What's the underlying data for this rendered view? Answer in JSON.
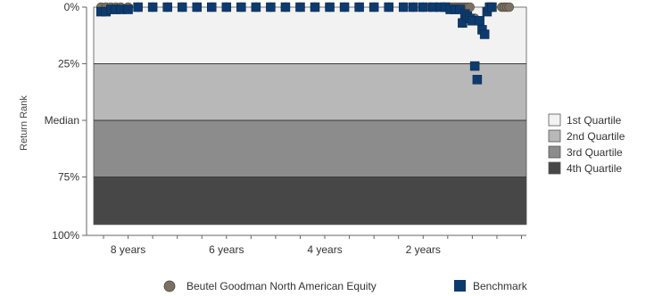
{
  "chart_data": {
    "type": "scatter",
    "title": "",
    "xlabel": "",
    "ylabel": "Return Rank",
    "x_unit": "years",
    "xlim": [
      8.7,
      -0.1
    ],
    "ylim": [
      0,
      100
    ],
    "y_ticks": [
      {
        "value": 0,
        "label": "0%"
      },
      {
        "value": 25,
        "label": "25%"
      },
      {
        "value": 50,
        "label": "Median"
      },
      {
        "value": 75,
        "label": "75%"
      },
      {
        "value": 100,
        "label": "100%"
      }
    ],
    "x_ticks": [
      {
        "value": 8,
        "label": "8 years"
      },
      {
        "value": 6,
        "label": "6 years"
      },
      {
        "value": 4,
        "label": "4 years"
      },
      {
        "value": 2,
        "label": "2 years"
      }
    ],
    "bands": [
      {
        "name": "1st Quartile",
        "from": 0,
        "to": 25,
        "color": "#f2f2f2"
      },
      {
        "name": "2nd Quartile",
        "from": 25,
        "to": 50,
        "color": "#b8b8b8"
      },
      {
        "name": "3rd Quartile",
        "from": 50,
        "to": 75,
        "color": "#8c8c8c"
      },
      {
        "name": "4th Quartile",
        "from": 75,
        "to": 96,
        "color": "#474747"
      }
    ],
    "series": [
      {
        "name": "Beutel Goodman North American Equity",
        "marker": "circle",
        "color": "#7a7163",
        "points": [
          [
            8.55,
            0
          ],
          [
            8.45,
            0
          ],
          [
            8.35,
            0
          ],
          [
            8.25,
            0
          ],
          [
            8.15,
            0
          ],
          [
            8.0,
            0
          ],
          [
            7.8,
            0
          ],
          [
            7.5,
            0
          ],
          [
            7.2,
            0
          ],
          [
            6.9,
            0
          ],
          [
            6.6,
            0
          ],
          [
            6.3,
            0
          ],
          [
            6.0,
            0
          ],
          [
            5.7,
            0
          ],
          [
            5.4,
            0
          ],
          [
            5.1,
            0
          ],
          [
            4.8,
            0
          ],
          [
            4.5,
            0
          ],
          [
            4.2,
            0
          ],
          [
            3.9,
            0
          ],
          [
            3.6,
            0
          ],
          [
            3.3,
            0
          ],
          [
            3.0,
            0
          ],
          [
            2.7,
            0
          ],
          [
            2.4,
            0
          ],
          [
            2.2,
            0
          ],
          [
            2.0,
            0
          ],
          [
            1.85,
            0
          ],
          [
            1.55,
            0
          ],
          [
            1.5,
            0
          ],
          [
            1.45,
            0
          ],
          [
            1.4,
            0
          ],
          [
            1.35,
            0
          ],
          [
            1.3,
            0
          ],
          [
            1.25,
            0
          ],
          [
            1.2,
            0
          ],
          [
            1.15,
            0
          ],
          [
            1.1,
            0
          ],
          [
            1.05,
            0
          ],
          [
            1.0,
            6
          ],
          [
            0.95,
            5
          ],
          [
            0.4,
            0
          ],
          [
            0.35,
            0
          ],
          [
            0.3,
            0
          ],
          [
            0.25,
            0
          ]
        ]
      },
      {
        "name": "Benchmark",
        "marker": "square",
        "color": "#0d3b6e",
        "points": [
          [
            8.55,
            2
          ],
          [
            8.45,
            2
          ],
          [
            8.35,
            1
          ],
          [
            8.25,
            1
          ],
          [
            8.15,
            1
          ],
          [
            8.0,
            1
          ],
          [
            7.8,
            0
          ],
          [
            7.5,
            0
          ],
          [
            7.2,
            0
          ],
          [
            6.9,
            0
          ],
          [
            6.6,
            0
          ],
          [
            6.3,
            0
          ],
          [
            6.0,
            0
          ],
          [
            5.7,
            0
          ],
          [
            5.4,
            0
          ],
          [
            5.1,
            0
          ],
          [
            4.8,
            0
          ],
          [
            4.5,
            0
          ],
          [
            4.2,
            0
          ],
          [
            3.9,
            0
          ],
          [
            3.6,
            0
          ],
          [
            3.3,
            0
          ],
          [
            3.0,
            0
          ],
          [
            2.7,
            0
          ],
          [
            2.4,
            0
          ],
          [
            2.2,
            0
          ],
          [
            2.0,
            0
          ],
          [
            1.8,
            0
          ],
          [
            1.65,
            0
          ],
          [
            1.55,
            0
          ],
          [
            1.45,
            1
          ],
          [
            1.35,
            1
          ],
          [
            1.25,
            1
          ],
          [
            1.2,
            7
          ],
          [
            1.15,
            3
          ],
          [
            1.1,
            4
          ],
          [
            1.05,
            5
          ],
          [
            1.0,
            6
          ],
          [
            0.95,
            26
          ],
          [
            0.9,
            32
          ],
          [
            0.85,
            6
          ],
          [
            0.8,
            10
          ],
          [
            0.75,
            12
          ],
          [
            0.7,
            2
          ],
          [
            0.65,
            0
          ],
          [
            0.6,
            0
          ]
        ]
      }
    ],
    "legend": {
      "bands_position": "right",
      "series_position": "bottom"
    }
  }
}
